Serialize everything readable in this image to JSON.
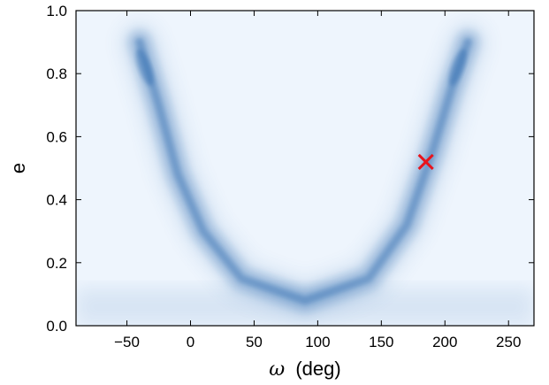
{
  "chart_data": {
    "type": "heatmap",
    "title": "",
    "xlabel_symbol": "ω",
    "xlabel_unit": "(deg)",
    "ylabel": "e",
    "xlim": [
      -90,
      270
    ],
    "ylim": [
      0,
      1.0
    ],
    "xticks": [
      "−50",
      "0",
      "50",
      "100",
      "150",
      "200",
      "250"
    ],
    "xtick_values": [
      -50,
      0,
      50,
      100,
      150,
      200,
      250
    ],
    "yticks": [
      "0.0",
      "0.2",
      "0.4",
      "0.6",
      "0.8",
      "1.0"
    ],
    "ytick_values": [
      0.0,
      0.2,
      0.4,
      0.6,
      0.8,
      1.0
    ],
    "density_color": "#1f5fa8",
    "background_color": "#eef5fd",
    "density_ridge": {
      "description_points": [
        {
          "omega": -40,
          "e": 0.9
        },
        {
          "omega": -25,
          "e": 0.7
        },
        {
          "omega": -10,
          "e": 0.48
        },
        {
          "omega": 10,
          "e": 0.3
        },
        {
          "omega": 40,
          "e": 0.15
        },
        {
          "omega": 90,
          "e": 0.08
        },
        {
          "omega": 140,
          "e": 0.15
        },
        {
          "omega": 170,
          "e": 0.32
        },
        {
          "omega": 190,
          "e": 0.55
        },
        {
          "omega": 205,
          "e": 0.75
        },
        {
          "omega": 218,
          "e": 0.9
        }
      ]
    },
    "marker": {
      "omega": 185,
      "e": 0.52,
      "symbol": "x",
      "color": "#e8141c"
    },
    "grid": false,
    "legend": "none"
  }
}
